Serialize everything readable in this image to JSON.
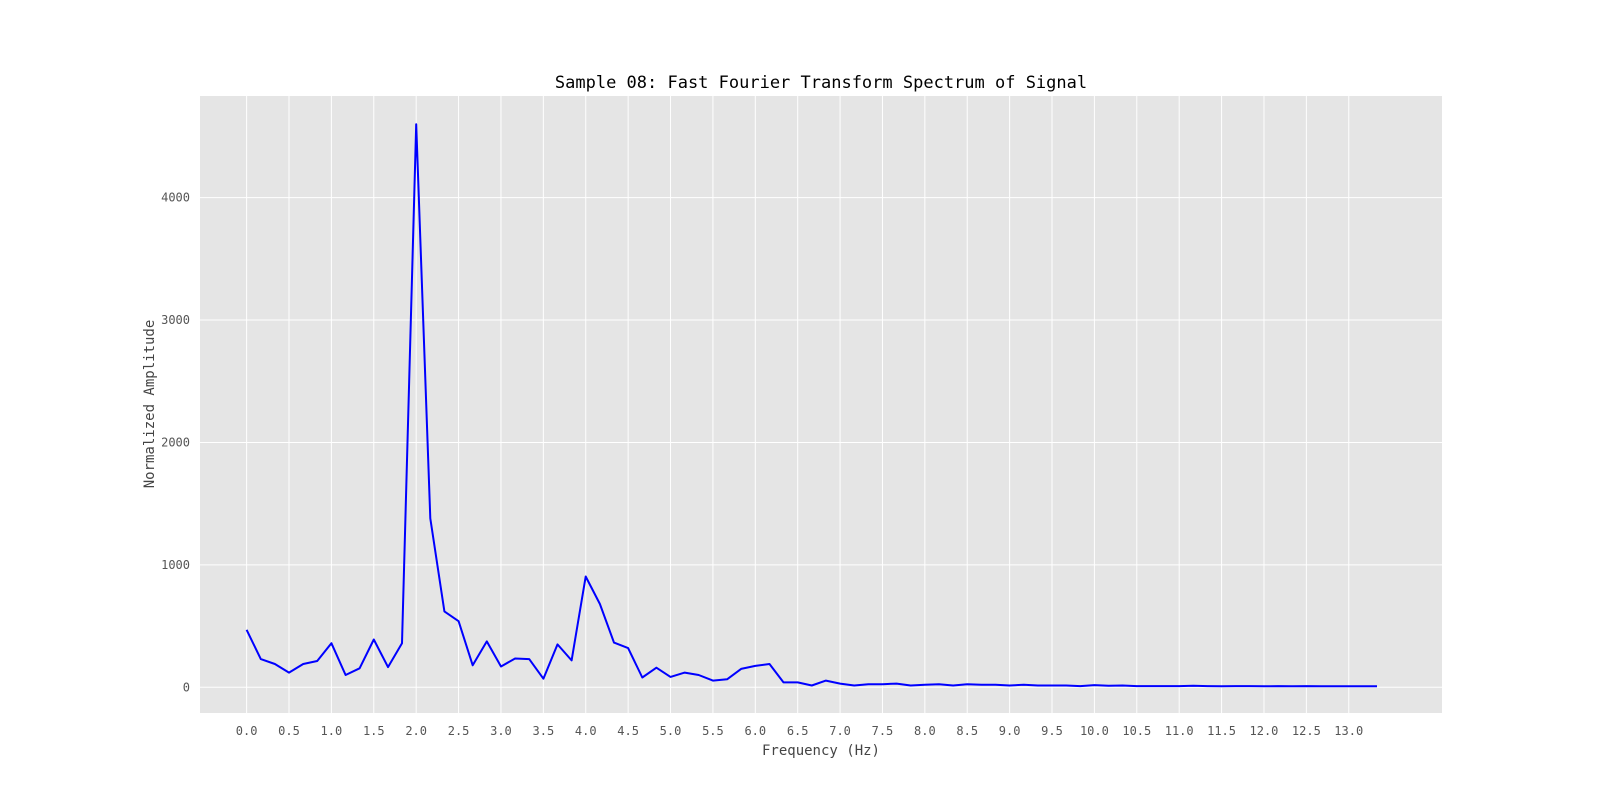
{
  "chart_data": {
    "type": "line",
    "title": "Sample 08: Fast Fourier Transform Spectrum of Signal",
    "xlabel": "Frequency (Hz)",
    "ylabel": "Normalized Amplitude",
    "xlim": [
      -0.55,
      14.1
    ],
    "ylim": [
      -210,
      4830
    ],
    "xticks": [
      0.0,
      0.5,
      1.0,
      1.5,
      2.0,
      2.5,
      3.0,
      3.5,
      4.0,
      4.5,
      5.0,
      5.5,
      6.0,
      6.5,
      7.0,
      7.5,
      8.0,
      8.5,
      9.0,
      9.5,
      10.0,
      10.5,
      11.0,
      11.5,
      12.0,
      12.5,
      13.0
    ],
    "xtick_labels": [
      "0.0",
      "0.5",
      "1.0",
      "1.5",
      "2.0",
      "2.5",
      "3.0",
      "3.5",
      "4.0",
      "4.5",
      "5.0",
      "5.5",
      "6.0",
      "6.5",
      "7.0",
      "7.5",
      "8.0",
      "8.5",
      "9.0",
      "9.5",
      "10.0",
      "10.5",
      "11.0",
      "11.5",
      "12.0",
      "12.5",
      "13.0"
    ],
    "yticks": [
      0,
      1000,
      2000,
      3000,
      4000
    ],
    "ytick_labels": [
      "0",
      "1000",
      "2000",
      "3000",
      "4000"
    ],
    "grid": true,
    "colors": {
      "background": "#e5e5e5",
      "grid": "#ffffff",
      "line": "#0000ff"
    },
    "series": [
      {
        "x": [
          0.0,
          0.167,
          0.333,
          0.5,
          0.667,
          0.833,
          1.0,
          1.167,
          1.333,
          1.5,
          1.667,
          1.833,
          2.0,
          2.167,
          2.333,
          2.5,
          2.667,
          2.833,
          3.0,
          3.167,
          3.333,
          3.5,
          3.667,
          3.833,
          4.0,
          4.167,
          4.333,
          4.5,
          4.667,
          4.833,
          5.0,
          5.167,
          5.333,
          5.5,
          5.667,
          5.833,
          6.0,
          6.167,
          6.333,
          6.5,
          6.667,
          6.833,
          7.0,
          7.167,
          7.333,
          7.5,
          7.667,
          7.833,
          8.0,
          8.167,
          8.333,
          8.5,
          8.667,
          8.833,
          9.0,
          9.167,
          9.333,
          9.5,
          9.667,
          9.833,
          10.0,
          10.167,
          10.333,
          10.5,
          10.667,
          10.833,
          11.0,
          11.167,
          11.333,
          11.5,
          11.667,
          11.833,
          12.0,
          12.167,
          12.333,
          12.5,
          12.667,
          12.833,
          13.0,
          13.167,
          13.333
        ],
        "values": [
          470,
          230,
          190,
          120,
          190,
          215,
          360,
          100,
          155,
          390,
          165,
          360,
          4600,
          1380,
          620,
          540,
          180,
          375,
          170,
          235,
          230,
          70,
          350,
          220,
          905,
          680,
          365,
          320,
          80,
          160,
          85,
          120,
          100,
          55,
          65,
          150,
          175,
          190,
          40,
          40,
          15,
          55,
          30,
          15,
          25,
          25,
          30,
          15,
          20,
          25,
          15,
          25,
          20,
          20,
          15,
          20,
          15,
          15,
          15,
          10,
          18,
          12,
          15,
          10,
          10,
          10,
          10,
          12,
          10,
          8,
          10,
          10,
          8,
          10,
          8,
          10,
          8,
          8,
          8,
          8,
          8
        ]
      }
    ]
  }
}
